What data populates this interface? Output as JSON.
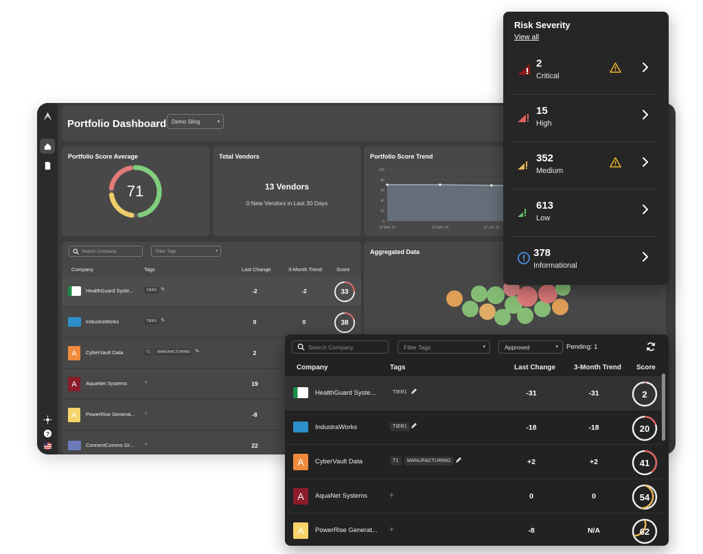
{
  "dashboard": {
    "title": "Portfolio Dashboard",
    "portfolio_select": "Demo Sling",
    "score_average": {
      "title": "Portfolio Score Average",
      "value": "71"
    },
    "total_vendors": {
      "title": "Total Vendors",
      "count": "13 Vendors",
      "new_text": "0 New Vendors in Last 30 Days"
    },
    "score_trend": {
      "title": "Portfolio Score Trend",
      "y_ticks": [
        "100",
        "80",
        "60",
        "40",
        "20",
        "0"
      ],
      "x_ticks": [
        "14 MAY 24",
        "21 MAY 24",
        "27 JUL 24"
      ]
    },
    "aggregated": {
      "title": "Aggregated Data"
    },
    "table": {
      "search_placeholder": "Search Company",
      "filter_placeholder": "Filter Tags",
      "headers": {
        "company": "Company",
        "tags": "Tags",
        "last_change": "Last Change",
        "trend": "3-Month Trend",
        "score": "Score"
      },
      "rows": [
        {
          "name": "HealthGuard Syste...",
          "tags": [
            "TIER1"
          ],
          "last_change": "-2",
          "trend": "-2",
          "score": "33"
        },
        {
          "name": "IndustraWorks",
          "tags": [
            "TIER1"
          ],
          "last_change": "0",
          "trend": "0",
          "score": "38"
        },
        {
          "name": "CyberVault Data",
          "logo_letter": "A",
          "tags": [
            "T1",
            "MANUFACTURING"
          ],
          "last_change": "2"
        },
        {
          "name": "AquaNet Systems",
          "logo_letter": "A",
          "last_change": "19"
        },
        {
          "name": "PowerRise Generat...",
          "logo_letter": "A",
          "last_change": "-8"
        },
        {
          "name": "ConnectComms Gr...",
          "last_change": "22"
        }
      ]
    }
  },
  "risk_severity": {
    "title": "Risk Severity",
    "view_all": "View all",
    "items": [
      {
        "count": "2",
        "label": "Critical",
        "warning": true,
        "color": "#8b1a1a"
      },
      {
        "count": "15",
        "label": "High",
        "warning": false,
        "color": "#e06060"
      },
      {
        "count": "352",
        "label": "Medium",
        "warning": true,
        "color": "#e8b85a"
      },
      {
        "count": "613",
        "label": "Low",
        "warning": false,
        "color": "#6abf69"
      },
      {
        "count": "378",
        "label": "Informational",
        "warning": false,
        "color": "#4a90e2"
      }
    ]
  },
  "vendor_table": {
    "search_placeholder": "Search Company",
    "filter_placeholder": "Filter Tags",
    "status_select": "Approved",
    "pending": "Pending: 1",
    "headers": {
      "company": "Company",
      "tags": "Tags",
      "last_change": "Last Change",
      "trend": "3-Month Trend",
      "score": "Score"
    },
    "rows": [
      {
        "name": "HealthGuard Syste...",
        "tags": [
          "TIER1"
        ],
        "last_change": "-31",
        "trend": "-31",
        "score": "2",
        "score_color": "#e06060"
      },
      {
        "name": "IndustraWorks",
        "tags": [
          "TIER1"
        ],
        "last_change": "-18",
        "trend": "-18",
        "score": "20",
        "score_color": "#e06060"
      },
      {
        "name": "CyberVault Data",
        "logo_letter": "A",
        "tags": [
          "T1",
          "MANUFACTURING"
        ],
        "last_change": "+2",
        "trend": "+2",
        "score": "41",
        "score_color": "#e06060"
      },
      {
        "name": "AquaNet Systems",
        "logo_letter": "A",
        "last_change": "0",
        "trend": "0",
        "score": "54",
        "score_color": "#e8b85a"
      },
      {
        "name": "PowerRise Generat...",
        "logo_letter": "A",
        "last_change": "-8",
        "trend": "N/A",
        "score": "62",
        "score_color": "#e8b85a"
      }
    ]
  },
  "colors": {
    "critical": "#8b1a1a",
    "high": "#e06060",
    "medium": "#e8b85a",
    "low": "#6abf69",
    "info": "#4a90e2",
    "warning": "#f0b429"
  }
}
